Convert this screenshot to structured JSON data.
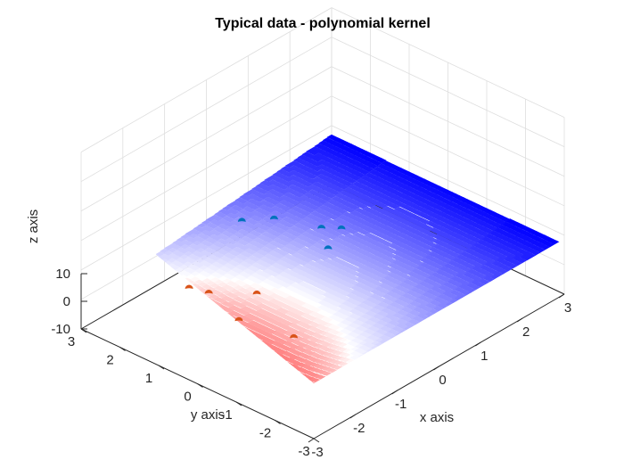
{
  "chart_data": {
    "type": "surface3d",
    "title": "Typical data - polynomial kernel",
    "xlabel": "x axis",
    "ylabel": "y axis",
    "zlabel": "z axis",
    "xlim": [
      -3,
      3
    ],
    "ylim": [
      -3,
      3
    ],
    "zlim": [
      -10,
      10
    ],
    "x_ticks": [
      "-3",
      "-2",
      "-1",
      "0",
      "1",
      "2",
      "3"
    ],
    "y_ticks": [
      "-3",
      "-2",
      "-1",
      "0",
      "1",
      "2",
      "3"
    ],
    "z_ticks": [
      "-10",
      "0",
      "10"
    ],
    "grid": true,
    "colormap": [
      "#ff0000",
      "#ffffff",
      "#0000ff"
    ],
    "surface_description": "decision function of polynomial kernel classifier, red where negative class, blue where positive class, white boundary curving near x = -0.5",
    "series": [
      {
        "color": "#d95319",
        "points": [
          {
            "x": -1.9,
            "y": 1.4
          },
          {
            "x": -1.8,
            "y": 1.0
          },
          {
            "x": -1.3,
            "y": 0.3
          },
          {
            "x": -2.1,
            "y": -0.1
          },
          {
            "x": -1.9,
            "y": -1.3
          }
        ]
      },
      {
        "color": "#0072bd",
        "points": [
          {
            "x": 0.2,
            "y": 2.3
          },
          {
            "x": 0.6,
            "y": 1.9
          },
          {
            "x": 0.9,
            "y": 1.0
          },
          {
            "x": 0.5,
            "y": 0.4
          },
          {
            "x": 1.1,
            "y": 0.7
          }
        ]
      }
    ]
  }
}
